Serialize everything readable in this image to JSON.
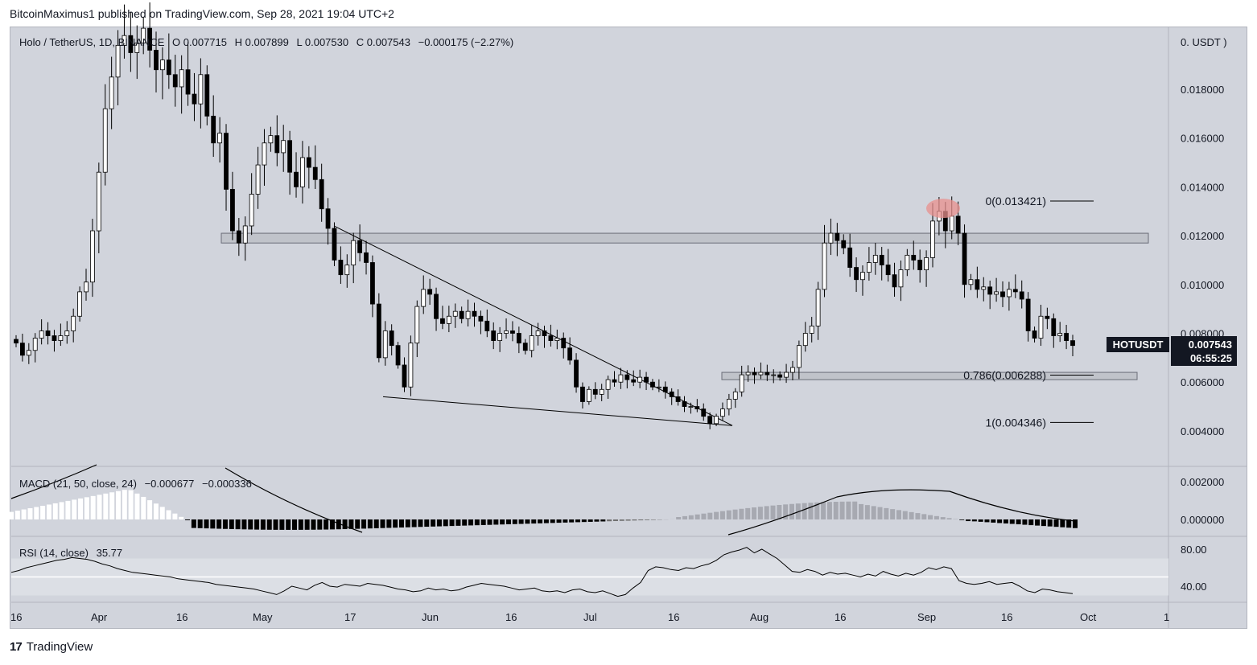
{
  "header": {
    "text": "BitcoinMaximus1 published on TradingView.com, Sep 28, 2021 19:04 UTC+2"
  },
  "legend": {
    "pair": "Holo / TetherUS, 1D, BINANCE",
    "o_label": "O",
    "o": "0.007715",
    "h_label": "H",
    "h": "0.007899",
    "l_label": "L",
    "l": "0.007530",
    "c_label": "C",
    "c": "0.007543",
    "change": "−0.000175 (−2.27%)"
  },
  "macd_legend": {
    "name": "MACD (21, 50, close, 24)",
    "v1": "−0.000677",
    "v2": "−0.000336"
  },
  "rsi_legend": {
    "name": "RSI (14, close)",
    "v1": "35.77"
  },
  "price_tag": {
    "symbol": "HOTUSDT",
    "price": "0.007543",
    "countdown": "06:55:25"
  },
  "footer": {
    "brand": "TradingView",
    "logo": "17"
  },
  "colors": {
    "background": "#d1d4dc",
    "highlight": "#e8908e",
    "band": "#bcbec6",
    "candle_up": "#ffffff",
    "candle_down": "#000000"
  },
  "chart_data": {
    "type": "candlestick",
    "symbol": "HOTUSDT",
    "timeframe": "1D",
    "price_unit": "USDT",
    "y_ticks": [
      "0.018000",
      "0.016000",
      "0.014000",
      "0.012000",
      "0.010000",
      "0.008000",
      "0.006000",
      "0.004000"
    ],
    "y_unit_label": "0. USDT )",
    "x_ticks": [
      "16",
      "Apr",
      "16",
      "May",
      "17",
      "Jun",
      "16",
      "Jul",
      "16",
      "Aug",
      "16",
      "Sep",
      "16",
      "Oct",
      "1"
    ],
    "close_path": [
      0.0076,
      0.0071,
      0.0073,
      0.0078,
      0.0081,
      0.0079,
      0.0077,
      0.0079,
      0.0081,
      0.0087,
      0.0097,
      0.0101,
      0.0122,
      0.0146,
      0.0172,
      0.0185,
      0.0198,
      0.0202,
      0.0195,
      0.0199,
      0.0205,
      0.0196,
      0.0188,
      0.0192,
      0.0186,
      0.0181,
      0.0188,
      0.0178,
      0.0174,
      0.0186,
      0.0169,
      0.0158,
      0.0162,
      0.0139,
      0.0122,
      0.0117,
      0.0124,
      0.0137,
      0.0149,
      0.0158,
      0.0161,
      0.0154,
      0.0159,
      0.0146,
      0.014,
      0.0152,
      0.0148,
      0.0143,
      0.0131,
      0.0123,
      0.011,
      0.0104,
      0.0108,
      0.0118,
      0.0113,
      0.0109,
      0.0092,
      0.007,
      0.0081,
      0.0075,
      0.0067,
      0.0058,
      0.0076,
      0.0091,
      0.0098,
      0.0096,
      0.0086,
      0.0084,
      0.0087,
      0.0089,
      0.0086,
      0.0089,
      0.0087,
      0.0085,
      0.0081,
      0.0077,
      0.008,
      0.0081,
      0.008,
      0.0076,
      0.0073,
      0.0079,
      0.0081,
      0.0079,
      0.0077,
      0.0078,
      0.0074,
      0.0069,
      0.0058,
      0.0052,
      0.0057,
      0.0055,
      0.0057,
      0.0061,
      0.006,
      0.0063,
      0.0061,
      0.006,
      0.0062,
      0.006,
      0.0058,
      0.0058,
      0.0056,
      0.0054,
      0.0052,
      0.005,
      0.005,
      0.0049,
      0.0046,
      0.0043,
      0.0046,
      0.0049,
      0.0053,
      0.0056,
      0.0063,
      0.0064,
      0.0063,
      0.0064,
      0.0063,
      0.0063,
      0.0062,
      0.0064,
      0.0066,
      0.0075,
      0.008,
      0.0083,
      0.0098,
      0.0117,
      0.0121,
      0.0118,
      0.0115,
      0.0107,
      0.0102,
      0.0105,
      0.0109,
      0.0112,
      0.0108,
      0.0104,
      0.0099,
      0.0106,
      0.0112,
      0.011,
      0.0106,
      0.0111,
      0.0126,
      0.013,
      0.0122,
      0.0128,
      0.0121,
      0.01,
      0.0102,
      0.0098,
      0.0099,
      0.0096,
      0.0097,
      0.0095,
      0.0098,
      0.0097,
      0.0094,
      0.0081,
      0.0078,
      0.0087,
      0.0086,
      0.0079,
      0.008,
      0.0077,
      0.0075
    ],
    "price_range": [
      0.003,
      0.02
    ],
    "horizontal_bands": [
      {
        "label": "resistance",
        "from": 0.0117,
        "to": 0.0121
      },
      {
        "label": "support",
        "from": 0.0061,
        "to": 0.0064
      }
    ],
    "fib_levels": [
      {
        "label": "0(0.013421)",
        "value": 0.013421
      },
      {
        "label": "0.786(0.006288)",
        "value": 0.006288
      },
      {
        "label": "1(0.004346)",
        "value": 0.004346
      }
    ],
    "wedge": {
      "upper": [
        [
          0.0124,
          0
        ],
        [
          0.0044,
          1
        ]
      ],
      "lower": [
        [
          0.0054,
          0
        ],
        [
          0.0043,
          1
        ]
      ]
    },
    "macd": {
      "y_ticks": [
        "0.002000",
        "0.000000"
      ],
      "params": "21, 50, close, 24"
    },
    "rsi": {
      "y_ticks": [
        "80.00",
        "40.00"
      ],
      "path": [
        55,
        57,
        60,
        62,
        64,
        66,
        68,
        69,
        71,
        70,
        69,
        67,
        64,
        62,
        59,
        57,
        55,
        54,
        53,
        52,
        51,
        50,
        48,
        47,
        46,
        45,
        44,
        42,
        41,
        40,
        39,
        38,
        37,
        35,
        33,
        31,
        35,
        40,
        38,
        36,
        41,
        44,
        40,
        39,
        42,
        41,
        40,
        43,
        42,
        41,
        39,
        37,
        36,
        34,
        35,
        38,
        36,
        37,
        35,
        36,
        39,
        41,
        43,
        42,
        41,
        40,
        38,
        36,
        37,
        38,
        35,
        34,
        35,
        33,
        36,
        37,
        34,
        33,
        35,
        32,
        29,
        31,
        38,
        44,
        57,
        61,
        60,
        58,
        57,
        60,
        59,
        62,
        64,
        68,
        74,
        77,
        79,
        82,
        76,
        80,
        75,
        70,
        63,
        56,
        55,
        58,
        56,
        52,
        55,
        53,
        54,
        52,
        50,
        53,
        51,
        56,
        53,
        51,
        54,
        52,
        55,
        60,
        58,
        61,
        59,
        46,
        43,
        42,
        43,
        45,
        42,
        43,
        44,
        40,
        35,
        33,
        37,
        36,
        34,
        33,
        32
      ]
    }
  }
}
